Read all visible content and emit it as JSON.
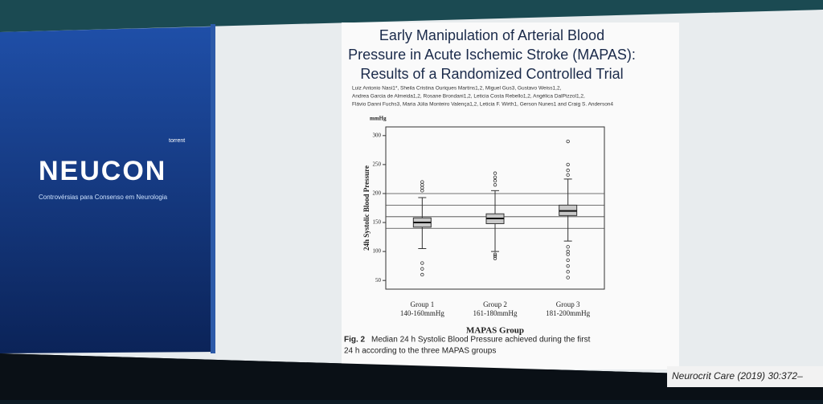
{
  "logo": {
    "brand": "NEUCON",
    "tagline": "Controvérsias para Consenso em Neurologia",
    "sponsor": "torrent"
  },
  "paper": {
    "title_lines": [
      "Early Manipulation of Arterial Blood",
      "Pressure in Acute Ischemic Stroke (MAPAS):",
      "Results of a Randomized Controlled Trial"
    ],
    "author_lines": [
      "Luiz Antonio Nasi1*, Sheila Cristina Ouriques Martins1,2, Miguel Gus3, Gustavo Weiss1,2,",
      "Andrea Garcia de Almeida1,2, Rosane Brondani1,2, Leticia Costa Rebello1,2, Angélica DalPizzol1,2,",
      "Flávio Danni Fuchs3, Maria Júlia Monteiro Valença1,2, Leticia F. Wirth1, Gerson Nunes1 and Craig S. Anderson4"
    ],
    "caption_label": "Fig. 2",
    "caption_lines": [
      "Median 24 h Systolic Blood Pressure achieved during the first",
      "24 h according to the three MAPAS groups"
    ],
    "citation": "Neurocrit Care (2019) 30:372–"
  },
  "chart_data": {
    "type": "boxplot",
    "y_label": "24h Systolic Blood Pressure",
    "y_unit": "mmHg",
    "x_label": "MAPAS Group",
    "categories": [
      "Group 1",
      "Group 2",
      "Group 3"
    ],
    "subcategories": [
      "140-160mmHg",
      "161-180mmHg",
      "181-200mmHg"
    ],
    "ylim": [
      35,
      315
    ],
    "yticks": [
      50,
      100,
      150,
      200,
      250,
      300
    ],
    "reference_lines": [
      140,
      160,
      180,
      200
    ],
    "color": "#c8c8c8",
    "boxes": [
      {
        "whisker_low": 105,
        "q1": 142,
        "median": 150,
        "q3": 158,
        "whisker_high": 193,
        "outliers": [
          60,
          70,
          80,
          205,
          210,
          215,
          220
        ]
      },
      {
        "whisker_low": 100,
        "q1": 148,
        "median": 157,
        "q3": 165,
        "whisker_high": 205,
        "outliers": [
          88,
          92,
          95,
          215,
          222,
          228,
          235
        ]
      },
      {
        "whisker_low": 118,
        "q1": 162,
        "median": 170,
        "q3": 180,
        "whisker_high": 225,
        "outliers": [
          55,
          65,
          75,
          85,
          95,
          100,
          108,
          232,
          240,
          250,
          290
        ]
      }
    ]
  }
}
